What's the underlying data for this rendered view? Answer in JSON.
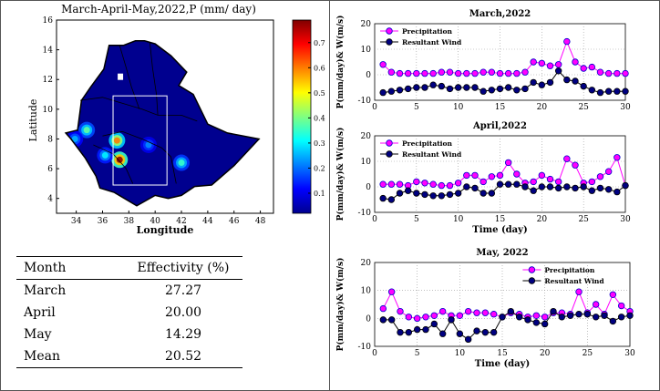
{
  "map": {
    "title": "March-April-May,2022,P (mm/ day)",
    "xlabel": "Longitude",
    "ylabel": "Latitude",
    "xticks": [
      34,
      36,
      38,
      40,
      42,
      44,
      46,
      48
    ],
    "yticks": [
      4,
      6,
      8,
      10,
      12,
      14,
      16
    ],
    "xlim": [
      32.5,
      49
    ],
    "ylim": [
      3,
      16
    ],
    "colorbar": {
      "ticks": [
        0.1,
        0.2,
        0.3,
        0.4,
        0.5,
        0.6,
        0.7
      ],
      "range": [
        0.02,
        0.79
      ]
    },
    "colors": {
      "low": "#00008f",
      "high": "#800000",
      "border": "#000000",
      "box": "#ffffff"
    },
    "study_box_extent": {
      "lon": [
        36.8,
        40.9
      ],
      "lat": [
        4.9,
        10.9
      ]
    },
    "hotspots": [
      {
        "lon": 37.3,
        "lat": 6.6,
        "value": 0.78
      },
      {
        "lon": 37.1,
        "lat": 7.9,
        "value": 0.6
      },
      {
        "lon": 34.8,
        "lat": 8.6,
        "value": 0.38
      },
      {
        "lon": 42.0,
        "lat": 6.4,
        "value": 0.35
      },
      {
        "lon": 36.2,
        "lat": 6.9,
        "value": 0.3
      },
      {
        "lon": 39.5,
        "lat": 7.6,
        "value": 0.22
      },
      {
        "lon": 33.9,
        "lat": 8.0,
        "value": 0.25
      }
    ]
  },
  "table": {
    "headers": [
      "Month",
      "Effectivity (%)"
    ],
    "rows": [
      {
        "month": "March",
        "value": "27.27"
      },
      {
        "month": "April",
        "value": "20.00"
      },
      {
        "month": "May",
        "value": "14.29"
      },
      {
        "month": "Mean",
        "value": "20.52"
      }
    ]
  },
  "chart_data": [
    {
      "type": "line",
      "title": "March,2022",
      "xlabel": "",
      "ylabel": "P(mm/day)& W(m/s)",
      "xlim": [
        0,
        30
      ],
      "ylim": [
        -10,
        20
      ],
      "xticks": [
        0,
        5,
        10,
        15,
        20,
        25,
        30
      ],
      "yticks": [
        -10,
        0,
        10,
        20
      ],
      "legend": "top-left",
      "x": [
        1,
        2,
        3,
        4,
        5,
        6,
        7,
        8,
        9,
        10,
        11,
        12,
        13,
        14,
        15,
        16,
        17,
        18,
        19,
        20,
        21,
        22,
        23,
        24,
        25,
        26,
        27,
        28,
        29,
        30
      ],
      "series": [
        {
          "name": "Precipitation",
          "color": "#ff00ff",
          "values": [
            4.0,
            1.0,
            0.5,
            0.5,
            0.5,
            0.5,
            0.5,
            1.0,
            1.0,
            0.5,
            0.5,
            0.5,
            1.0,
            1.0,
            0.5,
            0.5,
            0.5,
            1.0,
            5.0,
            4.5,
            3.5,
            4.0,
            13.0,
            5.0,
            2.5,
            3.0,
            1.0,
            0.5,
            0.5,
            0.5
          ]
        },
        {
          "name": "Resultant Wind",
          "color": "#000080",
          "values": [
            -7.0,
            -6.5,
            -6.0,
            -5.5,
            -5.0,
            -5.0,
            -4.0,
            -4.5,
            -5.5,
            -5.0,
            -5.0,
            -5.0,
            -6.5,
            -6.0,
            -5.5,
            -5.0,
            -6.0,
            -5.5,
            -3.0,
            -4.0,
            -3.0,
            1.5,
            -2.0,
            -2.5,
            -4.5,
            -6.0,
            -7.0,
            -6.5,
            -6.5,
            -6.5
          ]
        }
      ]
    },
    {
      "type": "line",
      "title": "April,2022",
      "xlabel": "Time (day)",
      "ylabel": "P(mm/day)& W(m/s)",
      "xlim": [
        0,
        30
      ],
      "ylim": [
        -10,
        20
      ],
      "xticks": [
        0,
        5,
        10,
        15,
        20,
        25,
        30
      ],
      "yticks": [
        -10,
        0,
        10,
        20
      ],
      "legend": "top-left",
      "x": [
        1,
        2,
        3,
        4,
        5,
        6,
        7,
        8,
        9,
        10,
        11,
        12,
        13,
        14,
        15,
        16,
        17,
        18,
        19,
        20,
        21,
        22,
        23,
        24,
        25,
        26,
        27,
        28,
        29,
        30
      ],
      "series": [
        {
          "name": "Precipitation",
          "color": "#ff00ff",
          "values": [
            1.0,
            1.0,
            1.0,
            0.5,
            2.0,
            1.5,
            1.0,
            0.5,
            0.5,
            1.5,
            4.5,
            4.5,
            2.0,
            4.0,
            4.5,
            9.5,
            5.0,
            1.5,
            2.0,
            4.5,
            3.0,
            2.0,
            11.0,
            8.5,
            1.5,
            2.0,
            4.0,
            6.0,
            11.5,
            0.5
          ]
        },
        {
          "name": "Resultant Wind",
          "color": "#000080",
          "values": [
            -4.5,
            -5.0,
            -2.5,
            -1.5,
            -2.5,
            -3.0,
            -3.5,
            -3.5,
            -3.0,
            -2.5,
            0.0,
            -0.5,
            -2.5,
            -2.5,
            1.0,
            1.0,
            1.0,
            0.0,
            -1.5,
            0.0,
            0.0,
            -0.5,
            0.0,
            -0.5,
            0.0,
            -1.5,
            -0.5,
            -1.0,
            -2.0,
            0.5
          ]
        }
      ]
    },
    {
      "type": "line",
      "title": "May, 2022",
      "xlabel": "Time (day)",
      "ylabel": "P(mm/day)& W(m/s)",
      "xlim": [
        0,
        30
      ],
      "ylim": [
        -10,
        20
      ],
      "xticks": [
        0,
        5,
        10,
        15,
        20,
        25,
        30
      ],
      "yticks": [
        -10,
        0,
        10,
        20
      ],
      "legend": "top-right",
      "x": [
        1,
        2,
        3,
        4,
        5,
        6,
        7,
        8,
        9,
        10,
        11,
        12,
        13,
        14,
        15,
        16,
        17,
        18,
        19,
        20,
        21,
        22,
        23,
        24,
        25,
        26,
        27,
        28,
        29,
        30
      ],
      "series": [
        {
          "name": "Precipitation",
          "color": "#ff00ff",
          "values": [
            3.5,
            9.5,
            2.5,
            0.5,
            0.0,
            0.5,
            1.0,
            2.5,
            1.0,
            1.0,
            2.5,
            2.0,
            2.0,
            1.5,
            0.5,
            2.0,
            1.5,
            0.5,
            1.0,
            0.5,
            2.0,
            2.0,
            1.5,
            9.5,
            2.0,
            5.0,
            1.5,
            8.5,
            4.5,
            2.5
          ]
        },
        {
          "name": "Resultant Wind",
          "color": "#000080",
          "values": [
            -0.5,
            -0.5,
            -5.0,
            -5.0,
            -4.0,
            -4.0,
            -2.0,
            -5.5,
            -0.5,
            -5.5,
            -7.5,
            -4.5,
            -5.0,
            -5.0,
            0.5,
            2.5,
            0.5,
            -0.5,
            -1.5,
            -2.0,
            2.5,
            0.5,
            1.0,
            1.5,
            1.5,
            0.5,
            1.0,
            -1.0,
            0.5,
            1.0
          ]
        }
      ]
    }
  ]
}
